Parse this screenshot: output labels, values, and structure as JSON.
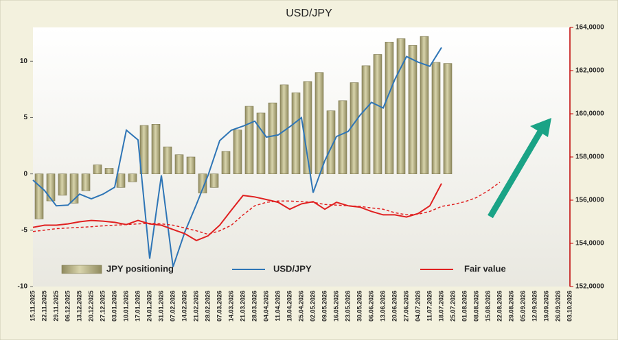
{
  "chart_data": {
    "type": "bar",
    "title": "USD/JPY",
    "categories": [
      "15.11.2025",
      "22.11.2025",
      "29.11.2025",
      "06.12.2025",
      "13.12.2025",
      "20.12.2025",
      "27.12.2025",
      "03.01.2026",
      "10.01.2026",
      "17.01.2026",
      "24.01.2026",
      "31.01.2026",
      "07.02.2026",
      "14.02.2026",
      "21.02.2026",
      "28.02.2026",
      "07.03.2026",
      "14.03.2026",
      "21.03.2026",
      "28.03.2026",
      "04.04.2026",
      "11.04.2026",
      "18.04.2026",
      "25.04.2026",
      "02.05.2026",
      "09.05.2026",
      "16.05.2026",
      "23.05.2026",
      "30.05.2026",
      "06.06.2026",
      "13.06.2026",
      "20.06.2026",
      "27.06.2026",
      "04.07.2026",
      "11.07.2026",
      "18.07.2026",
      "25.07.2026",
      "01.08.2026",
      "08.08.2026",
      "15.08.2026",
      "22.08.2026",
      "29.08.2026",
      "05.09.2026",
      "12.09.2026",
      "19.09.2026",
      "26.09.2026",
      "03.10.2026"
    ],
    "series": [
      {
        "name": "JPY positioning",
        "type": "bar",
        "color": "#b9b48a",
        "values": [
          -4,
          -2.4,
          -1.9,
          -2.6,
          -1.5,
          0.8,
          0.5,
          -1.2,
          -0.7,
          4.3,
          4.4,
          2.4,
          1.7,
          1.5,
          -1.7,
          -1.2,
          2.0,
          3.9,
          6.0,
          5.4,
          6.3,
          7.9,
          7.2,
          8.2,
          9.0,
          5.6,
          6.5,
          8.1,
          9.6,
          10.6,
          11.7,
          12.0,
          11.4,
          12.2,
          9.9,
          9.8,
          null,
          null,
          null,
          null,
          null,
          null,
          null,
          null,
          null,
          null,
          null
        ]
      },
      {
        "name": "USD/JPY",
        "type": "line",
        "axis": "y2",
        "color": "#2e75b6",
        "values": [
          156930,
          156440,
          155740,
          155770,
          156280,
          156060,
          156280,
          156600,
          159240,
          158790,
          153290,
          157150,
          152910,
          154510,
          155800,
          157150,
          158760,
          159240,
          159430,
          159660,
          158920,
          159020,
          159400,
          159820,
          156350,
          157830,
          158950,
          159180,
          159920,
          160530,
          160270,
          161590,
          162650,
          162390,
          162200,
          163070,
          null,
          null,
          null,
          null,
          null,
          null,
          null,
          null,
          null,
          null,
          null
        ]
      },
      {
        "name": "Fair value",
        "type": "line",
        "axis": "y2",
        "color": "#e02020",
        "values": [
          154740,
          154840,
          154840,
          154900,
          155000,
          155060,
          155030,
          154970,
          154870,
          155060,
          154900,
          154840,
          154640,
          154450,
          154130,
          154350,
          154840,
          155540,
          156220,
          156150,
          156030,
          155900,
          155580,
          155830,
          155930,
          155580,
          155900,
          155740,
          155680,
          155480,
          155320,
          155320,
          155220,
          155380,
          155740,
          156770,
          null,
          null,
          null,
          null,
          null,
          null,
          null,
          null,
          null,
          null,
          null
        ]
      },
      {
        "type": "line",
        "axis": "y2",
        "color": "#e02020",
        "dashed": true,
        "values": [
          154550,
          154610,
          154680,
          154710,
          154740,
          154770,
          154810,
          154840,
          154870,
          154900,
          154930,
          154900,
          154840,
          154710,
          154580,
          154420,
          154580,
          154840,
          155320,
          155740,
          155900,
          155960,
          155960,
          155930,
          155900,
          155800,
          155770,
          155740,
          155710,
          155640,
          155580,
          155420,
          155320,
          155350,
          155480,
          155710,
          155800,
          155930,
          156120,
          156440,
          156830,
          null,
          null,
          null,
          null,
          null,
          null
        ]
      }
    ],
    "ylim": [
      -10,
      13
    ],
    "yticks": [
      -10,
      -5,
      0,
      5,
      10
    ],
    "y2lim": [
      152000,
      164000
    ],
    "y2ticks": [
      {
        "value": 152000,
        "label": "152,0000"
      },
      {
        "value": 154000,
        "label": "154,0000"
      },
      {
        "value": 156000,
        "label": "156,0000"
      },
      {
        "value": 158000,
        "label": "158,0000"
      },
      {
        "value": 160000,
        "label": "160,0000"
      },
      {
        "value": 162000,
        "label": "162,0000"
      },
      {
        "value": 164000,
        "label": "164,0000"
      }
    ],
    "legend": "bottom"
  }
}
